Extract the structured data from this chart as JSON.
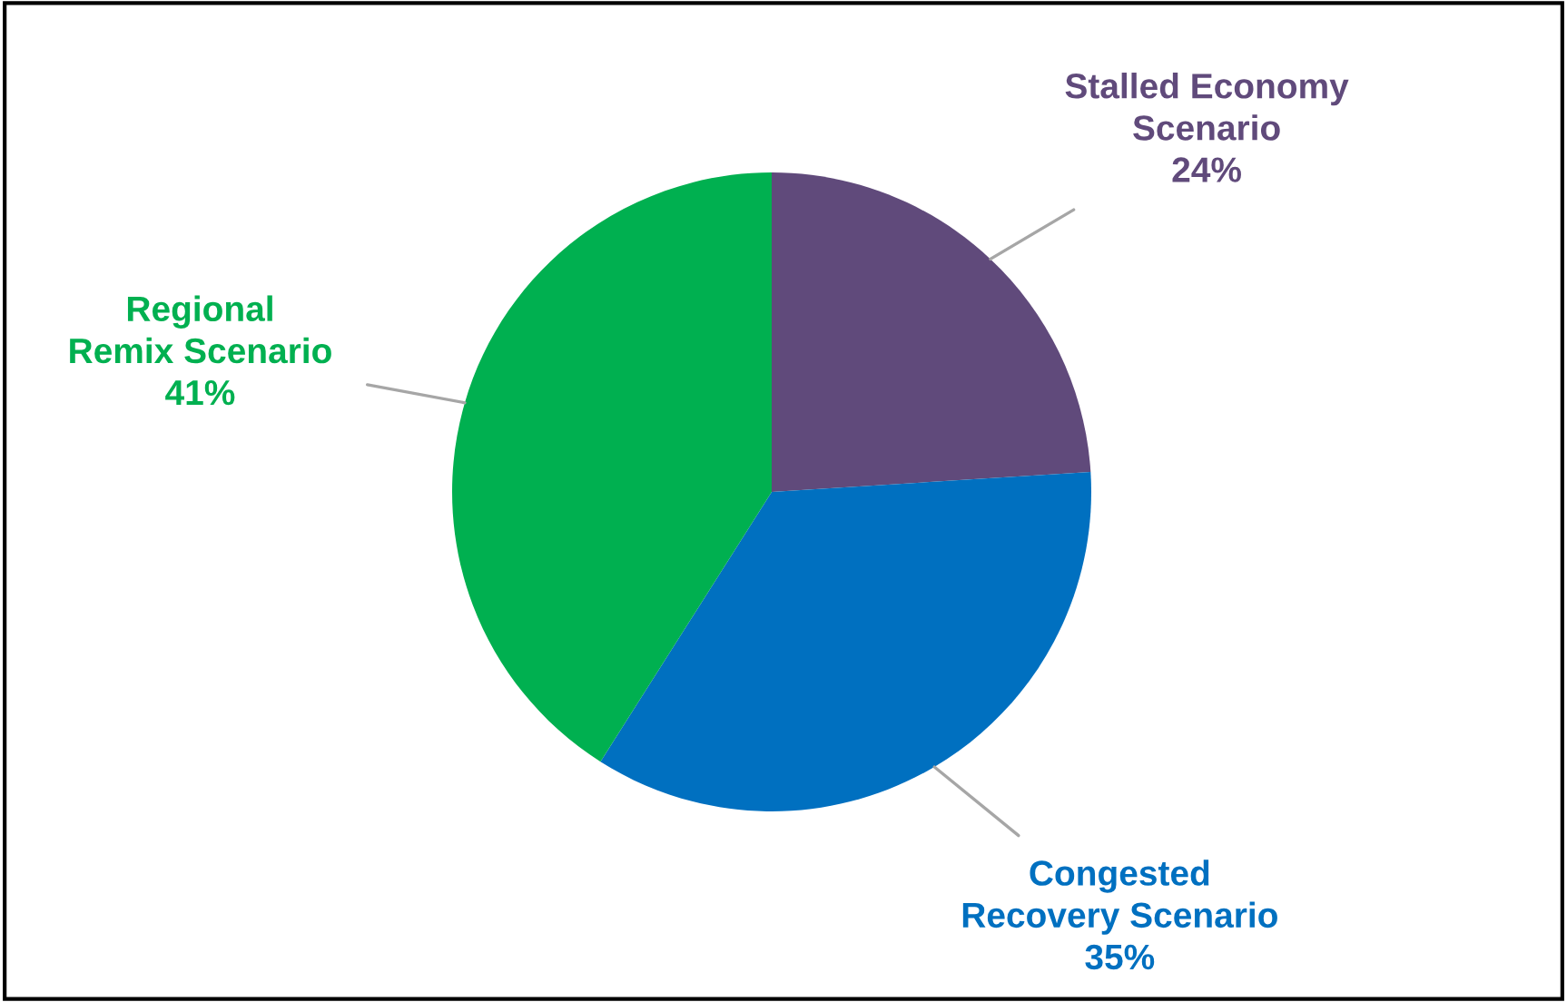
{
  "chart_data": {
    "type": "pie",
    "categories": [
      "Stalled Economy\nScenario",
      "Congested\nRecovery Scenario",
      "Regional\nRemix Scenario"
    ],
    "values": [
      24,
      35,
      41
    ],
    "value_labels": [
      "24%",
      "35%",
      "41%"
    ],
    "colors": [
      "#604a7b",
      "#0070c0",
      "#00b050"
    ]
  }
}
